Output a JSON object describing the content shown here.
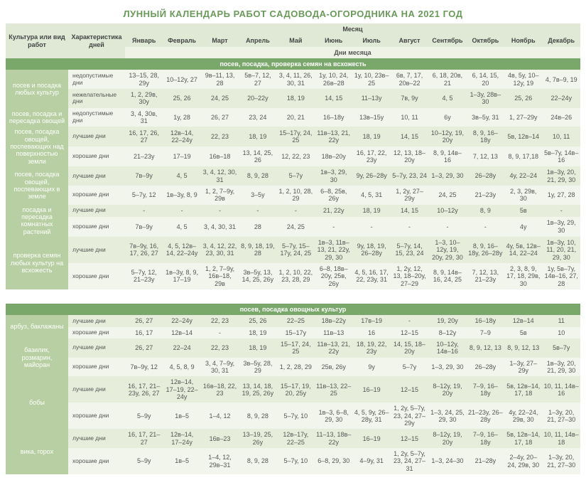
{
  "title": "ЛУННЫЙ КАЛЕНДАРЬ РАБОТ САДОВОДА-ОГОРОДНИКА НА 2021 ГОД",
  "columns": {
    "culture": "Культура или вид работ",
    "char": "Характеристика дней",
    "month_group": "Месяц",
    "days_group": "Дни месяца",
    "months": [
      "Январь",
      "Февраль",
      "Март",
      "Апрель",
      "Май",
      "Июнь",
      "Июль",
      "Август",
      "Сентябрь",
      "Октябрь",
      "Ноябрь",
      "Декабрь"
    ]
  },
  "sections": [
    {
      "title": "посев, посадка, проверка семян на всхожесть",
      "groups": [
        {
          "label": "посев и посадка любых культур",
          "rows": [
            {
              "char": "недопустимые дни",
              "cells": [
                "13–15, 28, 29у",
                "10–12у, 27",
                "9в–11, 13, 28",
                "5в–7, 12, 27",
                "3, 4, 11, 26, 30, 31",
                "1у, 10, 24, 26в–28",
                "1у, 10, 23в–25",
                "6в, 7, 17, 20в–22",
                "6, 18, 20в, 21",
                "6, 14, 15, 20",
                "4в, 5у, 10–12у, 19",
                "4, 7в–9, 19"
              ]
            },
            {
              "char": "нежелательные дни",
              "cells": [
                "1, 2, 29в, 30у",
                "25, 26",
                "24, 25",
                "20–22у",
                "18, 19",
                "14, 15",
                "11–13у",
                "7в, 9у",
                "4, 5",
                "1–3у, 28в–30",
                "25, 26",
                "22–24у"
              ]
            }
          ]
        },
        {
          "label": "посев, посадка и пересадка овощей",
          "rows": [
            {
              "char": "недопустимые дни",
              "cells": [
                "3, 4, 30в, 31",
                "1у, 28",
                "26, 27",
                "23, 24",
                "20, 21",
                "16–18у",
                "13в–15у",
                "10, 11",
                "6у",
                "3в–5у, 31",
                "1, 27–29у",
                "24в–26"
              ]
            }
          ]
        },
        {
          "label": "посев, посадка овощей, поспевающих над поверхностью земли",
          "rows": [
            {
              "char": "лучшие дни",
              "cells": [
                "16, 17, 26, 27",
                "12в–14, 22–24у",
                "22, 23",
                "18, 19",
                "15–17у, 24, 25",
                "11в–13, 21, 22у",
                "18, 19",
                "14, 15",
                "10–12у, 19, 20у",
                "8, 9, 16–18у",
                "5в, 12в–14",
                "10, 11"
              ]
            },
            {
              "char": "хорошие дни",
              "cells": [
                "21–23у",
                "17–19",
                "16в–18",
                "13, 14, 25, 26",
                "12, 22, 23",
                "18в–20у",
                "16, 17, 22, 23у",
                "12, 13, 18–20у",
                "8, 9, 14в–16",
                "7, 12, 13",
                "8, 9, 17,18",
                "5в–7у, 14в–16"
              ]
            }
          ]
        },
        {
          "label": "посев, посадка овощей, поспевающих в земле",
          "rows": [
            {
              "char": "лучшие дни",
              "cells": [
                "7в–9у",
                "4, 5",
                "3, 4, 12, 30, 31",
                "8, 9, 28",
                "5–7у",
                "1в–3, 29, 30",
                "9у, 26–28у",
                "5–7у, 23, 24",
                "1–3, 29, 30",
                "26–28у",
                "4у, 22–24",
                "1в–3у, 20, 21, 29, 30"
              ]
            },
            {
              "char": "хорошие дни",
              "cells": [
                "5–7у, 12",
                "1в–3у, 8, 9",
                "1, 2, 7–9у, 29в",
                "3–5у",
                "1, 2, 10, 28, 29",
                "6–8, 25в, 26у",
                "4, 5, 31",
                "1, 2у, 27–29у",
                "24, 25",
                "21–23у",
                "2, 3, 29в, 30",
                "1у, 27, 28"
              ]
            }
          ]
        },
        {
          "label": "посадка и пересадка комнатных растений",
          "rows": [
            {
              "char": "лучшие дни",
              "cells": [
                "-",
                "-",
                "-",
                "-",
                "-",
                "21, 22у",
                "18, 19",
                "14, 15",
                "10–12у",
                "8, 9",
                "5в",
                "-"
              ]
            },
            {
              "char": "хорошие дни",
              "cells": [
                "7в–9у",
                "4, 5",
                "3, 4, 30, 31",
                "28",
                "24, 25",
                "-",
                "-",
                "-",
                "-",
                "-",
                "4у",
                "1в–3у, 29, 30"
              ]
            }
          ]
        },
        {
          "label": "проверка семян любых культур на всхожесть",
          "rows": [
            {
              "char": "лучшие дни",
              "cells": [
                "7в–9у, 16, 17, 26, 27",
                "4, 5, 12в–14, 22–24у",
                "3, 4, 12, 22, 23, 30, 31",
                "8, 9, 18, 19, 28",
                "5–7у, 15–17у, 24, 25",
                "1в–3, 11в–13, 21, 22у, 29, 30",
                "9у, 18, 19, 26–28у",
                "5–7у, 14, 15, 23, 24",
                "1–3, 10–12у, 19, 20у, 29, 30",
                "8, 9, 16–18у, 26–28у",
                "4у, 5в, 12в–14, 22–24",
                "1в–3у, 10, 11, 20, 21, 29, 30"
              ]
            },
            {
              "char": "хорошие дни",
              "cells": [
                "5–7у, 12, 21–23у",
                "1в–3у, 8, 9, 17–19",
                "1, 2, 7–9у, 16в–18, 29в",
                "3в–5у, 13, 14, 25, 26у",
                "1, 2, 10, 22, 23, 28, 29",
                "6–8, 18в–20у, 25в, 26у",
                "4, 5, 16, 17, 22, 23у, 31",
                "1, 2у, 12, 13, 18–20у, 27–29",
                "8, 9, 14в–16, 24, 25",
                "7, 12, 13, 21–23у",
                "2, 3, 8, 9, 17, 18, 29в, 30",
                "1у, 5в–7у, 14в–16, 27, 28"
              ]
            }
          ]
        }
      ]
    },
    {
      "title": "посев, посадка овощных культур",
      "groups": [
        {
          "label": "арбуз, баклажаны",
          "rows": [
            {
              "char": "лучшие дни",
              "cells": [
                "26, 27",
                "22–24у",
                "22, 23",
                "25, 26",
                "22–25",
                "18в–22у",
                "17в–19",
                "-",
                "19, 20у",
                "16–18у",
                "12в–14",
                "11"
              ]
            },
            {
              "char": "хорошие дни",
              "cells": [
                "16, 17",
                "12в–14",
                "-",
                "18, 19",
                "15–17у",
                "11в–13",
                "16",
                "12–15",
                "8–12у",
                "7–9",
                "5в",
                "10"
              ]
            }
          ]
        },
        {
          "label": "базилик, розмарин, майоран",
          "rows": [
            {
              "char": "лучшие дни",
              "cells": [
                "26, 27",
                "22–24",
                "22, 23",
                "18, 19",
                "15–17, 24, 25",
                "11в–13, 21, 22у",
                "18, 19, 22, 23у",
                "14, 15, 18–20у",
                "10–12у, 14в–16",
                "8, 9, 12, 13",
                "8, 9, 12, 13",
                "5в–7у"
              ]
            },
            {
              "char": "хорошие дни",
              "cells": [
                "7в–9у, 12",
                "4, 5, 8, 9",
                "3, 4, 7–9у, 30, 31",
                "3в–5у, 28, 29",
                "1, 2, 28, 29",
                "25в, 26у",
                "9у",
                "5–7у",
                "1–3, 29, 30",
                "26–28у",
                "1–3у, 27–29у",
                "1в–3у, 20, 21, 29, 30"
              ]
            }
          ]
        },
        {
          "label": "бобы",
          "rows": [
            {
              "char": "лучшие дни",
              "cells": [
                "16, 17, 21–23у, 26, 27",
                "12в–14, 17–19, 22–24у",
                "16в–18, 22, 23",
                "13, 14, 18, 19, 25, 26у",
                "15–17, 19, 20, 25у",
                "11в–13, 22–25",
                "16–19",
                "12–15",
                "8–12у, 19, 20у",
                "7–9, 16–18у",
                "5в, 12в–14, 17, 18",
                "10, 11, 14в–16"
              ]
            },
            {
              "char": "хорошие дни",
              "cells": [
                "5–9у",
                "1в–5",
                "1–4, 12",
                "8, 9, 28",
                "5–7у, 10",
                "1в–3, 6–8, 29, 30",
                "4, 5, 9у, 26–28у, 31",
                "1, 2у, 5–7у, 23, 24, 27–29у",
                "1–3, 24, 25, 29, 30",
                "21–23у, 26–28у",
                "4у, 22–24, 29в, 30",
                "1–3у, 20, 21, 27–30"
              ]
            }
          ]
        },
        {
          "label": "вика, горох",
          "rows": [
            {
              "char": "лучшие дни",
              "cells": [
                "16, 17, 21–27",
                "12в–14, 17–24у",
                "16в–23",
                "13–19, 25, 26у",
                "12в–17у, 22–25",
                "11–13, 18в–22у",
                "16–19",
                "12–15",
                "8–12у, 19, 20у",
                "7–9, 16–18у",
                "5в, 12в–14, 17, 18",
                "10, 11, 14в–18"
              ]
            },
            {
              "char": "хорошие дни",
              "cells": [
                "5–9у",
                "1в–5",
                "1–4, 12, 29в–31",
                "8, 9, 28",
                "5–7у, 10",
                "6–8, 29, 30",
                "4–9у, 31",
                "1, 2у, 5–7у, 23, 24, 27–31",
                "1–3, 24–30",
                "21–28у",
                "2–4у, 20–24, 29в, 30",
                "1–3у, 20, 21, 27–30"
              ]
            }
          ]
        }
      ]
    }
  ]
}
